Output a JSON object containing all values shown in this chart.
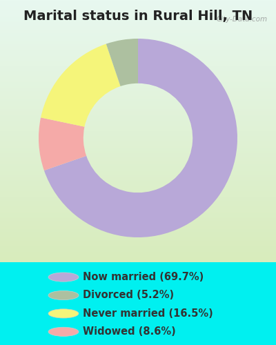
{
  "title": "Marital status in Rural Hill, TN",
  "slices": [
    69.7,
    8.6,
    16.5,
    5.2
  ],
  "labels": [
    "Now married (69.7%)",
    "Divorced (5.2%)",
    "Never married (16.5%)",
    "Widowed (8.6%)"
  ],
  "legend_order_colors": [
    "#b8a8d8",
    "#adc0a0",
    "#f5f57a",
    "#f5aaa8"
  ],
  "legend_order_labels": [
    "Now married (69.7%)",
    "Divorced (5.2%)",
    "Never married (16.5%)",
    "Widowed (8.6%)"
  ],
  "pie_colors": [
    "#b8a8d8",
    "#f5aaa8",
    "#f5f57a",
    "#adc0a0"
  ],
  "outer_bg": "#00f0f0",
  "chart_bg_top": "#e8f8f0",
  "chart_bg_bottom": "#d8ecbc",
  "title_fontsize": 14,
  "legend_fontsize": 10.5,
  "watermark": "City-Data.com",
  "startangle": 90,
  "donut_width": 0.45
}
